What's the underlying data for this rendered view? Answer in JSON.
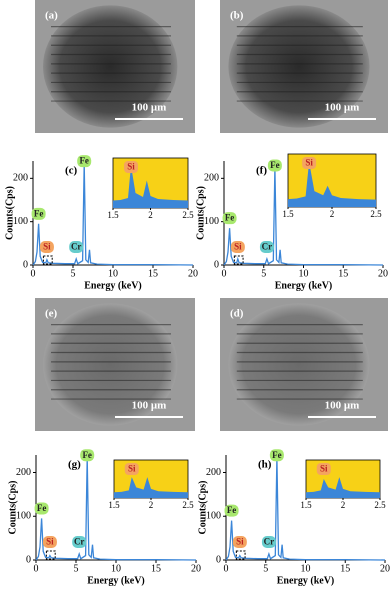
{
  "micrographs": [
    {
      "panel": "(a)",
      "scale_bar": "100 μm"
    },
    {
      "panel": "(b)",
      "scale_bar": "100 μm"
    },
    {
      "panel": "(e)",
      "scale_bar": "100 μm"
    },
    {
      "panel": "(d)",
      "scale_bar": "100 μm"
    }
  ],
  "chart_data": [
    {
      "type": "line",
      "panel": "(c)",
      "xlabel": "Energy (keV)",
      "ylabel": "Counts(Cps)",
      "xlim": [
        0,
        20
      ],
      "ylim": [
        0,
        240
      ],
      "xticks": [
        0,
        5,
        10,
        15,
        20
      ],
      "yticks": [
        0,
        100,
        200
      ],
      "color": "#3b86d8",
      "x": [
        0,
        0.3,
        0.5,
        0.7,
        0.9,
        1.2,
        1.6,
        1.74,
        1.9,
        2.5,
        4,
        5.2,
        5.4,
        5.6,
        6.2,
        6.4,
        6.6,
        6.9,
        7.06,
        7.2,
        8,
        10,
        15,
        20
      ],
      "values": [
        0,
        8,
        30,
        95,
        20,
        6,
        5,
        12,
        5,
        4,
        3,
        3,
        14,
        3,
        10,
        235,
        12,
        6,
        35,
        5,
        2,
        1,
        1,
        0
      ],
      "annotations": [
        "Fe",
        "Si",
        "Cr",
        "Fe"
      ],
      "inset": {
        "type": "area",
        "annotation": "Si",
        "xlim": [
          1.5,
          2.5
        ],
        "xticks": [
          1.5,
          2,
          2.5
        ],
        "ylim": [
          0,
          100
        ],
        "background": "#f7d117",
        "x": [
          1.5,
          1.6,
          1.7,
          1.74,
          1.8,
          1.9,
          1.95,
          2.0,
          2.1,
          2.3,
          2.5
        ],
        "values": [
          15,
          16,
          20,
          85,
          30,
          22,
          55,
          24,
          18,
          16,
          15
        ]
      }
    },
    {
      "type": "line",
      "panel": "(f)",
      "xlabel": "Energy (keV)",
      "ylabel": "Counts(Cps)",
      "xlim": [
        0,
        20
      ],
      "ylim": [
        0,
        240
      ],
      "xticks": [
        0,
        5,
        10,
        15,
        20
      ],
      "yticks": [
        0,
        100,
        200
      ],
      "color": "#3b86d8",
      "x": [
        0,
        0.3,
        0.5,
        0.7,
        0.9,
        1.2,
        1.6,
        1.74,
        1.9,
        2.5,
        4,
        5.2,
        5.4,
        5.6,
        6.2,
        6.4,
        6.6,
        6.9,
        7.06,
        7.2,
        8,
        10,
        15,
        20
      ],
      "values": [
        0,
        8,
        30,
        85,
        20,
        6,
        5,
        14,
        5,
        4,
        3,
        3,
        14,
        3,
        10,
        225,
        12,
        6,
        35,
        5,
        2,
        1,
        1,
        0
      ],
      "annotations": [
        "Fe",
        "Si",
        "Cr",
        "Fe"
      ],
      "inset": {
        "type": "area",
        "annotation": "Si",
        "xlim": [
          1.5,
          2.5
        ],
        "xticks": [
          1.5,
          2,
          2.5
        ],
        "ylim": [
          0,
          100
        ],
        "background": "#f7d117",
        "x": [
          1.5,
          1.6,
          1.7,
          1.74,
          1.8,
          1.9,
          1.95,
          2.0,
          2.1,
          2.3,
          2.5
        ],
        "values": [
          15,
          16,
          20,
          85,
          30,
          22,
          40,
          22,
          17,
          15,
          14
        ]
      }
    },
    {
      "type": "line",
      "panel": "(g)",
      "xlabel": "Energy (keV)",
      "ylabel": "Counts(Cps)",
      "xlim": [
        0,
        20
      ],
      "ylim": [
        0,
        240
      ],
      "xticks": [
        0,
        5,
        10,
        15,
        20
      ],
      "yticks": [
        0,
        100,
        200
      ],
      "color": "#3b86d8",
      "x": [
        0,
        0.3,
        0.5,
        0.7,
        0.9,
        1.2,
        1.6,
        1.74,
        1.9,
        2.5,
        4,
        5.2,
        5.4,
        5.6,
        6.2,
        6.4,
        6.6,
        6.9,
        7.06,
        7.2,
        8,
        10,
        15,
        20
      ],
      "values": [
        0,
        8,
        30,
        95,
        20,
        6,
        5,
        10,
        5,
        4,
        3,
        3,
        14,
        3,
        10,
        235,
        12,
        6,
        35,
        5,
        2,
        1,
        1,
        0
      ],
      "annotations": [
        "Fe",
        "Si",
        "Cr",
        "Fe"
      ],
      "inset": {
        "type": "area",
        "annotation": "Si",
        "xlim": [
          1.5,
          2.5
        ],
        "xticks": [
          1.5,
          2,
          2.5
        ],
        "ylim": [
          0,
          100
        ],
        "background": "#f7d117",
        "x": [
          1.5,
          1.6,
          1.7,
          1.74,
          1.8,
          1.9,
          1.95,
          2.0,
          2.1,
          2.3,
          2.5
        ],
        "values": [
          15,
          16,
          20,
          55,
          28,
          22,
          55,
          24,
          18,
          16,
          15
        ]
      }
    },
    {
      "type": "line",
      "panel": "(h)",
      "xlabel": "Energy (keV)",
      "ylabel": "Counts(Cps)",
      "xlim": [
        0,
        20
      ],
      "ylim": [
        0,
        240
      ],
      "xticks": [
        0,
        5,
        10,
        15,
        20
      ],
      "yticks": [
        0,
        100,
        200
      ],
      "color": "#3b86d8",
      "x": [
        0,
        0.3,
        0.5,
        0.7,
        0.9,
        1.2,
        1.6,
        1.74,
        1.9,
        2.5,
        4,
        5.2,
        5.4,
        5.6,
        6.2,
        6.4,
        6.6,
        6.9,
        7.06,
        7.2,
        8,
        10,
        15,
        20
      ],
      "values": [
        0,
        8,
        30,
        90,
        20,
        6,
        5,
        10,
        5,
        4,
        3,
        3,
        14,
        3,
        10,
        235,
        12,
        6,
        35,
        5,
        2,
        1,
        1,
        0
      ],
      "annotations": [
        "Fe",
        "Si",
        "Cr",
        "Fe"
      ],
      "inset": {
        "type": "area",
        "annotation": "Si",
        "xlim": [
          1.5,
          2.5
        ],
        "xticks": [
          1.5,
          2,
          2.5
        ],
        "ylim": [
          0,
          100
        ],
        "background": "#f7d117",
        "x": [
          1.5,
          1.6,
          1.7,
          1.74,
          1.8,
          1.9,
          1.95,
          2.0,
          2.1,
          2.3,
          2.5
        ],
        "values": [
          15,
          16,
          20,
          50,
          28,
          22,
          55,
          24,
          18,
          16,
          15
        ]
      }
    }
  ]
}
